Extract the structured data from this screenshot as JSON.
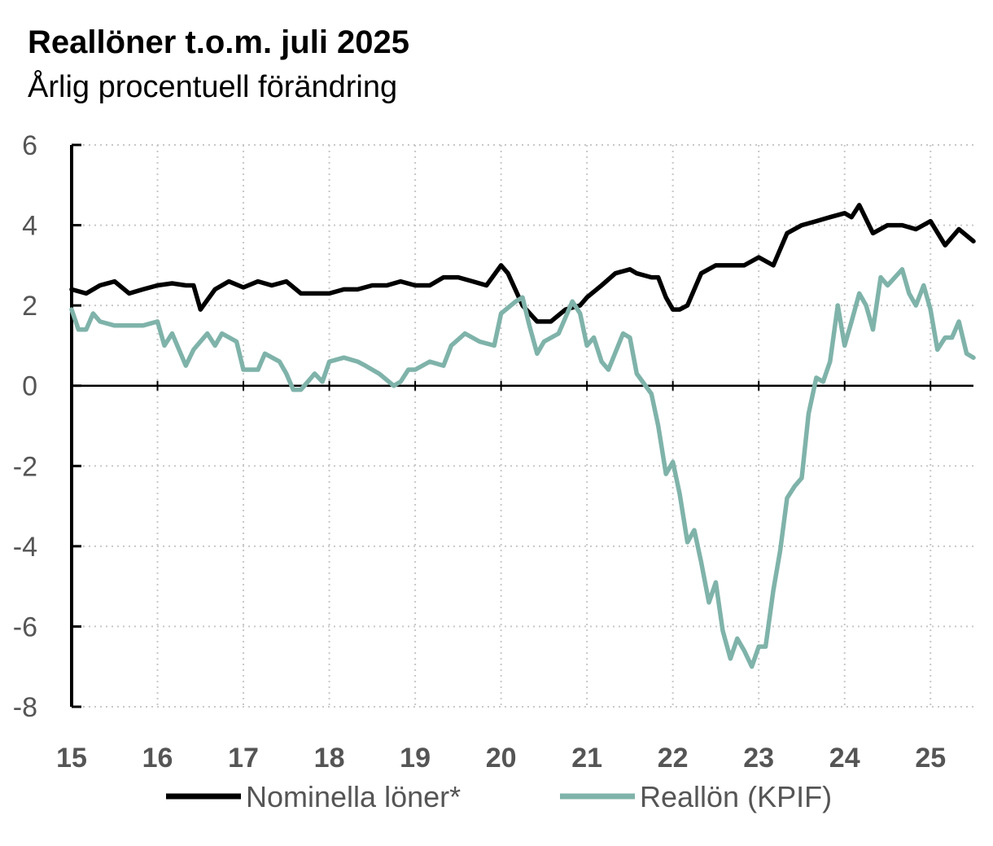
{
  "chart_data": {
    "type": "line",
    "title": "Reallöner t.o.m. juli 2025",
    "subtitle": "Årlig procentuell förändring",
    "ylim": [
      -8,
      6
    ],
    "yticks": [
      6,
      4,
      2,
      0,
      -2,
      -4,
      -6,
      -8
    ],
    "xlim": [
      2015.0,
      2025.5
    ],
    "xtick_labels": [
      "15",
      "16",
      "17",
      "18",
      "19",
      "20",
      "21",
      "22",
      "23",
      "24",
      "25"
    ],
    "grid": true,
    "legend_position": "bottom",
    "series": [
      {
        "name": "Nominella löner*",
        "color": "#000000",
        "points": [
          [
            2015.0,
            2.4
          ],
          [
            2015.17,
            2.3
          ],
          [
            2015.33,
            2.5
          ],
          [
            2015.5,
            2.6
          ],
          [
            2015.67,
            2.3
          ],
          [
            2015.83,
            2.4
          ],
          [
            2016.0,
            2.5
          ],
          [
            2016.17,
            2.55
          ],
          [
            2016.33,
            2.5
          ],
          [
            2016.42,
            2.5
          ],
          [
            2016.5,
            1.9
          ],
          [
            2016.67,
            2.4
          ],
          [
            2016.83,
            2.6
          ],
          [
            2017.0,
            2.45
          ],
          [
            2017.17,
            2.6
          ],
          [
            2017.33,
            2.5
          ],
          [
            2017.5,
            2.6
          ],
          [
            2017.67,
            2.3
          ],
          [
            2017.83,
            2.3
          ],
          [
            2018.0,
            2.3
          ],
          [
            2018.17,
            2.4
          ],
          [
            2018.33,
            2.4
          ],
          [
            2018.5,
            2.5
          ],
          [
            2018.67,
            2.5
          ],
          [
            2018.83,
            2.6
          ],
          [
            2019.0,
            2.5
          ],
          [
            2019.17,
            2.5
          ],
          [
            2019.33,
            2.7
          ],
          [
            2019.5,
            2.7
          ],
          [
            2019.67,
            2.6
          ],
          [
            2019.83,
            2.5
          ],
          [
            2020.0,
            3.0
          ],
          [
            2020.08,
            2.8
          ],
          [
            2020.25,
            2.0
          ],
          [
            2020.42,
            1.6
          ],
          [
            2020.58,
            1.6
          ],
          [
            2020.75,
            1.9
          ],
          [
            2020.92,
            2.0
          ],
          [
            2021.0,
            2.2
          ],
          [
            2021.17,
            2.5
          ],
          [
            2021.33,
            2.8
          ],
          [
            2021.5,
            2.9
          ],
          [
            2021.58,
            2.8
          ],
          [
            2021.75,
            2.7
          ],
          [
            2021.83,
            2.7
          ],
          [
            2021.92,
            2.2
          ],
          [
            2022.0,
            1.9
          ],
          [
            2022.08,
            1.9
          ],
          [
            2022.17,
            2.0
          ],
          [
            2022.25,
            2.4
          ],
          [
            2022.33,
            2.8
          ],
          [
            2022.5,
            3.0
          ],
          [
            2022.67,
            3.0
          ],
          [
            2022.83,
            3.0
          ],
          [
            2023.0,
            3.2
          ],
          [
            2023.17,
            3.0
          ],
          [
            2023.33,
            3.8
          ],
          [
            2023.5,
            4.0
          ],
          [
            2023.67,
            4.1
          ],
          [
            2023.83,
            4.2
          ],
          [
            2024.0,
            4.3
          ],
          [
            2024.08,
            4.2
          ],
          [
            2024.17,
            4.5
          ],
          [
            2024.33,
            3.8
          ],
          [
            2024.5,
            4.0
          ],
          [
            2024.67,
            4.0
          ],
          [
            2024.83,
            3.9
          ],
          [
            2025.0,
            4.1
          ],
          [
            2025.17,
            3.5
          ],
          [
            2025.33,
            3.9
          ],
          [
            2025.5,
            3.6
          ]
        ]
      },
      {
        "name": "Reallön (KPIF)",
        "color": "#7fb3aa",
        "points": [
          [
            2015.0,
            1.9
          ],
          [
            2015.08,
            1.4
          ],
          [
            2015.17,
            1.4
          ],
          [
            2015.25,
            1.8
          ],
          [
            2015.33,
            1.6
          ],
          [
            2015.5,
            1.5
          ],
          [
            2015.67,
            1.5
          ],
          [
            2015.83,
            1.5
          ],
          [
            2016.0,
            1.6
          ],
          [
            2016.08,
            1.0
          ],
          [
            2016.17,
            1.3
          ],
          [
            2016.33,
            0.5
          ],
          [
            2016.42,
            0.9
          ],
          [
            2016.58,
            1.3
          ],
          [
            2016.67,
            1.0
          ],
          [
            2016.75,
            1.3
          ],
          [
            2016.92,
            1.1
          ],
          [
            2017.0,
            0.4
          ],
          [
            2017.17,
            0.4
          ],
          [
            2017.25,
            0.8
          ],
          [
            2017.42,
            0.6
          ],
          [
            2017.5,
            0.3
          ],
          [
            2017.58,
            -0.1
          ],
          [
            2017.67,
            -0.1
          ],
          [
            2017.75,
            0.1
          ],
          [
            2017.83,
            0.3
          ],
          [
            2017.92,
            0.1
          ],
          [
            2018.0,
            0.6
          ],
          [
            2018.17,
            0.7
          ],
          [
            2018.33,
            0.6
          ],
          [
            2018.42,
            0.5
          ],
          [
            2018.5,
            0.4
          ],
          [
            2018.58,
            0.3
          ],
          [
            2018.75,
            0.0
          ],
          [
            2018.83,
            0.1
          ],
          [
            2018.92,
            0.4
          ],
          [
            2019.0,
            0.4
          ],
          [
            2019.17,
            0.6
          ],
          [
            2019.33,
            0.5
          ],
          [
            2019.42,
            1.0
          ],
          [
            2019.58,
            1.3
          ],
          [
            2019.75,
            1.1
          ],
          [
            2019.92,
            1.0
          ],
          [
            2020.0,
            1.8
          ],
          [
            2020.17,
            2.1
          ],
          [
            2020.25,
            2.2
          ],
          [
            2020.33,
            1.5
          ],
          [
            2020.42,
            0.8
          ],
          [
            2020.5,
            1.1
          ],
          [
            2020.67,
            1.3
          ],
          [
            2020.83,
            2.1
          ],
          [
            2020.92,
            1.8
          ],
          [
            2021.0,
            1.0
          ],
          [
            2021.08,
            1.2
          ],
          [
            2021.17,
            0.6
          ],
          [
            2021.25,
            0.4
          ],
          [
            2021.42,
            1.3
          ],
          [
            2021.5,
            1.2
          ],
          [
            2021.58,
            0.3
          ],
          [
            2021.75,
            -0.2
          ],
          [
            2021.83,
            -1.0
          ],
          [
            2021.92,
            -2.2
          ],
          [
            2022.0,
            -1.9
          ],
          [
            2022.08,
            -2.7
          ],
          [
            2022.17,
            -3.9
          ],
          [
            2022.25,
            -3.6
          ],
          [
            2022.33,
            -4.4
          ],
          [
            2022.42,
            -5.4
          ],
          [
            2022.5,
            -4.9
          ],
          [
            2022.58,
            -6.1
          ],
          [
            2022.67,
            -6.8
          ],
          [
            2022.75,
            -6.3
          ],
          [
            2022.83,
            -6.6
          ],
          [
            2022.92,
            -7.0
          ],
          [
            2023.0,
            -6.5
          ],
          [
            2023.08,
            -6.5
          ],
          [
            2023.17,
            -5.1
          ],
          [
            2023.25,
            -4.1
          ],
          [
            2023.33,
            -2.8
          ],
          [
            2023.42,
            -2.5
          ],
          [
            2023.5,
            -2.3
          ],
          [
            2023.58,
            -0.7
          ],
          [
            2023.67,
            0.2
          ],
          [
            2023.75,
            0.1
          ],
          [
            2023.83,
            0.6
          ],
          [
            2023.92,
            2.0
          ],
          [
            2024.0,
            1.0
          ],
          [
            2024.08,
            1.6
          ],
          [
            2024.17,
            2.3
          ],
          [
            2024.25,
            2.0
          ],
          [
            2024.33,
            1.4
          ],
          [
            2024.42,
            2.7
          ],
          [
            2024.5,
            2.5
          ],
          [
            2024.67,
            2.9
          ],
          [
            2024.75,
            2.3
          ],
          [
            2024.83,
            2.0
          ],
          [
            2024.92,
            2.5
          ],
          [
            2025.0,
            1.9
          ],
          [
            2025.08,
            0.9
          ],
          [
            2025.17,
            1.2
          ],
          [
            2025.25,
            1.2
          ],
          [
            2025.33,
            1.6
          ],
          [
            2025.42,
            0.8
          ],
          [
            2025.5,
            0.7
          ]
        ]
      }
    ]
  }
}
